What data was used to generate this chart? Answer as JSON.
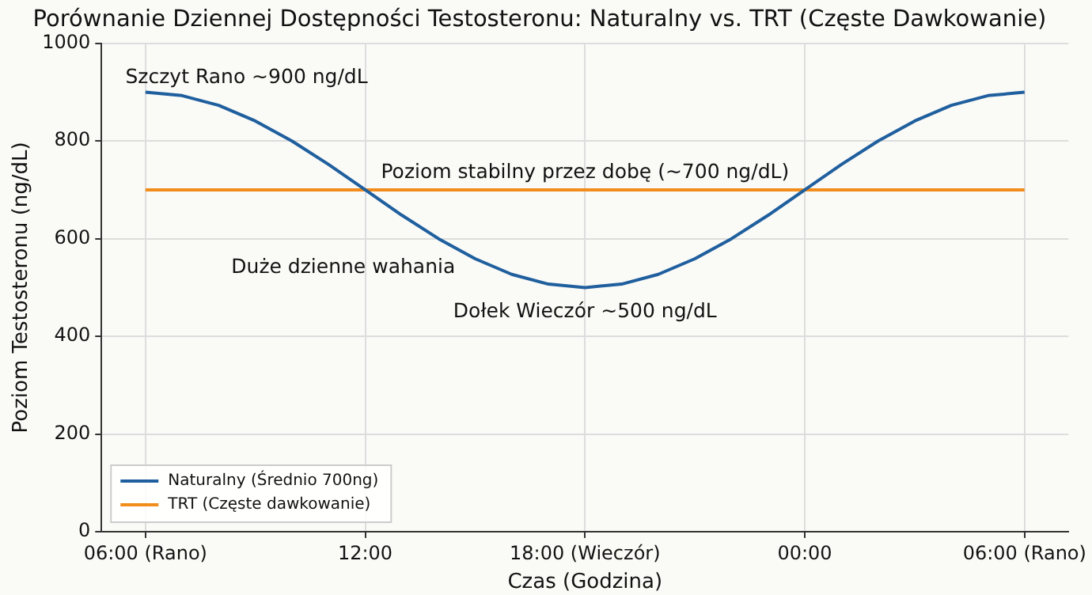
{
  "chart_data": {
    "type": "line",
    "title": "Porównanie Dziennej Dostępności Testosteronu: Naturalny vs. TRT (Częste Dawkowanie)",
    "xlabel": "Czas (Godzina)",
    "ylabel": "Poziom Testosteronu (ng/dL)",
    "xlim": [
      4.8,
      31.2
    ],
    "xticks": [
      {
        "value": 6,
        "label": "06:00 (Rano)"
      },
      {
        "value": 12,
        "label": "12:00"
      },
      {
        "value": 18,
        "label": "18:00 (Wieczór)"
      },
      {
        "value": 24,
        "label": "00:00"
      },
      {
        "value": 30,
        "label": "06:00 (Rano)"
      }
    ],
    "ylim": [
      0,
      1000
    ],
    "yticks": [
      0,
      200,
      400,
      600,
      800,
      1000
    ],
    "grid": true,
    "legend": "bottom left",
    "series": [
      {
        "name": "Naturalny (Średnio 700ng)",
        "color": "#1f5f9e",
        "x": [
          6,
          7,
          8,
          9,
          10,
          11,
          12,
          13,
          14,
          15,
          16,
          17,
          18,
          19,
          20,
          21,
          22,
          23,
          24,
          25,
          26,
          27,
          28,
          29,
          30
        ],
        "values": [
          900,
          893,
          873,
          841,
          800,
          752,
          700,
          648,
          600,
          559,
          527,
          507,
          500,
          507,
          527,
          559,
          600,
          648,
          700,
          752,
          800,
          841,
          873,
          893,
          900
        ]
      },
      {
        "name": "TRT (Częste dawkowanie)",
        "color": "#f28c1a",
        "x": [
          6,
          30
        ],
        "values": [
          700,
          700
        ]
      }
    ],
    "annotations": [
      "Szczyt Rano ~900 ng/dL",
      "Poziom stabilny przez dobę (~700 ng/dL)",
      "Duże dzienne wahania",
      "Dołek Wieczór ~500 ng/dL"
    ]
  }
}
